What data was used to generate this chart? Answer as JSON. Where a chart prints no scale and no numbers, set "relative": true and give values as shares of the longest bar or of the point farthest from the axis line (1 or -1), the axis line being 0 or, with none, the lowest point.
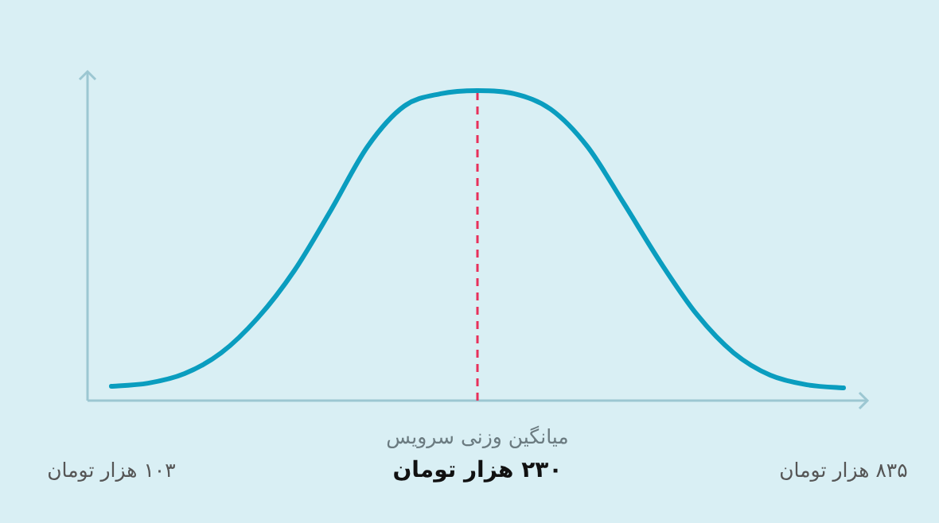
{
  "chart_data": {
    "type": "line",
    "relative": true,
    "color": "#0a9dbf",
    "categories": [
      "۱۰۳ هزار تومان",
      null,
      null,
      null,
      null,
      null,
      null,
      null,
      null,
      null,
      "۲۳۰ هزار تومان",
      null,
      null,
      null,
      null,
      null,
      null,
      null,
      null,
      null,
      "۸۳۵ هزار تومان"
    ],
    "values": [
      0.046,
      0.056,
      0.087,
      0.154,
      0.267,
      0.42,
      0.615,
      0.82,
      0.95,
      0.99,
      1,
      0.99,
      0.94,
      0.82,
      0.636,
      0.446,
      0.277,
      0.154,
      0.082,
      0.051,
      0.041
    ],
    "ref_lines": [
      {
        "axis": "x",
        "value": "۲۳۰ هزار تومان",
        "label": "میانگین وزنی سرویس",
        "color": "#e8305a",
        "line_style": "dashed"
      }
    ]
  }
}
